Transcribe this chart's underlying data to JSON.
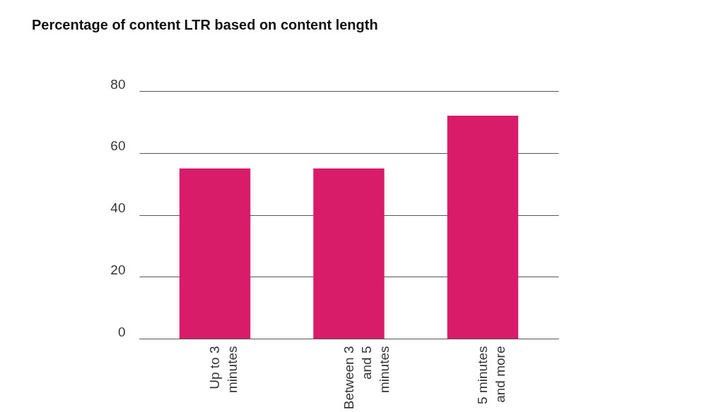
{
  "chart_data": {
    "type": "bar",
    "title": "Percentage of content LTR based on content length",
    "categories": [
      "Up to 3 minutes",
      "Between 3 and 5 minutes",
      "5 minutes and more"
    ],
    "values": [
      55,
      55,
      72
    ],
    "color": "#d81c6a",
    "ylim": [
      0,
      80
    ],
    "yticks": [
      0,
      20,
      40,
      60,
      80
    ],
    "grid": "y"
  }
}
